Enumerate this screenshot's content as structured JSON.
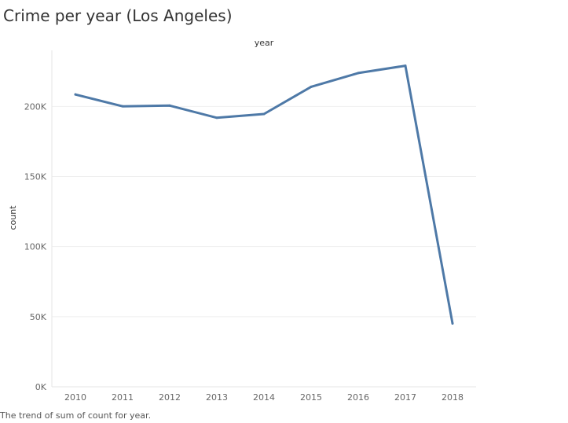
{
  "title": "Crime per year (Los Angeles)",
  "caption": "The trend of sum of count for year.",
  "chart_data": {
    "type": "line",
    "xlabel": "year",
    "ylabel": "count",
    "x": [
      "2010",
      "2011",
      "2012",
      "2013",
      "2014",
      "2015",
      "2016",
      "2017",
      "2018"
    ],
    "series": [
      {
        "values": [
          208500,
          200100,
          200600,
          191900,
          194600,
          214000,
          223800,
          229000,
          45200
        ]
      }
    ],
    "ylim": [
      0,
      240000
    ],
    "yticks": [
      0,
      50000,
      100000,
      150000,
      200000
    ],
    "ytick_labels": [
      "0K",
      "50K",
      "100K",
      "150K",
      "200K"
    ],
    "grid": true,
    "colors": {
      "line": "#4e79a7",
      "grid": "#efefef",
      "axis": "#e6e6e6"
    }
  }
}
